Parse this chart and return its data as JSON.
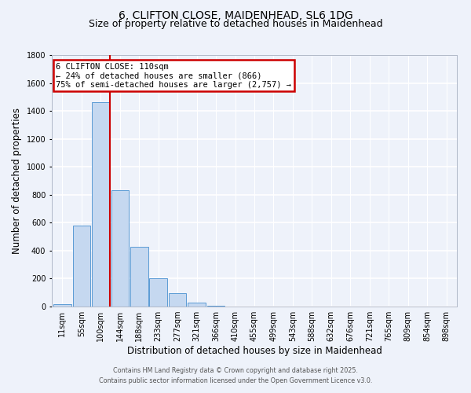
{
  "title_line1": "6, CLIFTON CLOSE, MAIDENHEAD, SL6 1DG",
  "title_line2": "Size of property relative to detached houses in Maidenhead",
  "xlabel": "Distribution of detached houses by size in Maidenhead",
  "ylabel": "Number of detached properties",
  "bar_labels": [
    "11sqm",
    "55sqm",
    "100sqm",
    "144sqm",
    "188sqm",
    "233sqm",
    "277sqm",
    "321sqm",
    "366sqm",
    "410sqm",
    "455sqm",
    "499sqm",
    "543sqm",
    "588sqm",
    "632sqm",
    "676sqm",
    "721sqm",
    "765sqm",
    "809sqm",
    "854sqm",
    "898sqm"
  ],
  "bar_values": [
    15,
    580,
    1465,
    835,
    425,
    200,
    95,
    30,
    8,
    2,
    1,
    0,
    0,
    0,
    0,
    0,
    0,
    0,
    0,
    0,
    0
  ],
  "bar_color": "#c5d8f0",
  "bar_edge_color": "#5b9bd5",
  "vline_idx": 2,
  "vline_color": "#cc0000",
  "ylim": [
    0,
    1800
  ],
  "yticks": [
    0,
    200,
    400,
    600,
    800,
    1000,
    1200,
    1400,
    1600,
    1800
  ],
  "annotation_text": "6 CLIFTON CLOSE: 110sqm\n← 24% of detached houses are smaller (866)\n75% of semi-detached houses are larger (2,757) →",
  "annotation_box_color": "#ffffff",
  "annotation_box_edge": "#cc0000",
  "footer_line1": "Contains HM Land Registry data © Crown copyright and database right 2025.",
  "footer_line2": "Contains public sector information licensed under the Open Government Licence v3.0.",
  "bg_color": "#eef2fa",
  "grid_color": "#ffffff",
  "title_fontsize": 10,
  "subtitle_fontsize": 9,
  "axis_label_fontsize": 8.5,
  "tick_fontsize": 7
}
